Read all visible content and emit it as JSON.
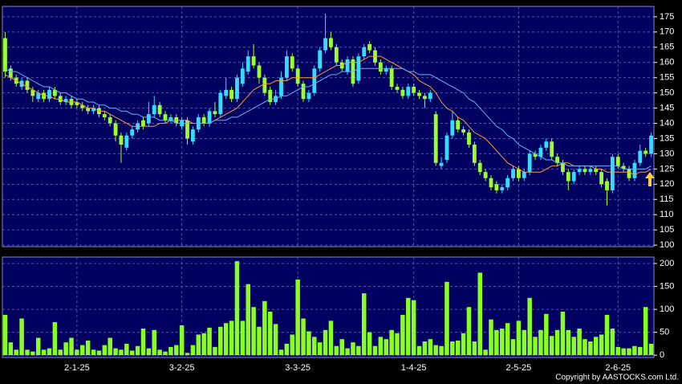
{
  "chart_data": [
    {
      "type": "candlestick",
      "categories": [
        null,
        null,
        null,
        null,
        null,
        null,
        null,
        null,
        null,
        null,
        null,
        null,
        null,
        "2-1-25",
        null,
        null,
        null,
        null,
        null,
        null,
        null,
        null,
        null,
        null,
        null,
        null,
        null,
        null,
        null,
        null,
        null,
        null,
        "3-2-25",
        null,
        null,
        null,
        null,
        null,
        null,
        null,
        null,
        null,
        null,
        null,
        null,
        null,
        null,
        null,
        null,
        null,
        null,
        null,
        null,
        "3-3-25",
        null,
        null,
        null,
        null,
        null,
        null,
        null,
        null,
        null,
        null,
        null,
        null,
        null,
        null,
        null,
        null,
        null,
        null,
        null,
        null,
        "1-4-25",
        null,
        null,
        null,
        null,
        null,
        null,
        null,
        null,
        null,
        null,
        null,
        null,
        null,
        null,
        null,
        null,
        null,
        null,
        "2-5-25",
        null,
        null,
        null,
        null,
        null,
        null,
        null,
        null,
        null,
        null,
        null,
        null,
        null,
        null,
        null,
        null,
        null,
        "2-6-25",
        null,
        null,
        null,
        null,
        null,
        null
      ],
      "open": [
        168,
        158,
        155,
        152,
        154,
        151,
        148,
        150,
        148,
        151,
        149,
        147,
        148,
        147,
        146,
        145,
        144,
        145,
        143,
        142,
        140,
        136,
        132,
        136,
        138,
        141,
        140,
        143,
        146,
        143,
        141,
        142,
        139,
        141,
        134,
        138,
        142,
        140,
        144,
        143,
        149,
        151,
        148,
        153,
        157,
        162,
        159,
        155,
        151,
        147,
        149,
        155,
        162,
        158,
        153,
        148,
        150,
        158,
        164,
        168,
        165,
        160,
        157,
        161,
        154,
        162,
        166,
        164,
        160,
        157,
        158,
        152,
        151,
        149,
        152,
        150,
        149,
        148,
        143,
        126,
        128,
        136,
        141,
        138,
        137,
        133,
        127,
        124,
        122,
        120,
        118,
        119,
        122,
        125,
        122,
        124,
        130,
        129,
        132,
        134,
        129,
        127,
        124,
        121,
        124,
        125,
        124,
        125,
        124,
        121,
        118,
        129,
        126,
        125,
        122,
        127,
        131,
        130
      ],
      "high": [
        170,
        159,
        156,
        155,
        155,
        152,
        151,
        151,
        152,
        152,
        150,
        149,
        149,
        148,
        147,
        146,
        146,
        146,
        144,
        143,
        141,
        137,
        137,
        139,
        141,
        142,
        147,
        149,
        147,
        144,
        143,
        143,
        142,
        142,
        139,
        143,
        143,
        145,
        147,
        151,
        155,
        152,
        156,
        160,
        164,
        166,
        160,
        156,
        152,
        151,
        157,
        164,
        163,
        159,
        154,
        151,
        159,
        165,
        176,
        170,
        166,
        161,
        162,
        162,
        163,
        166,
        167,
        165,
        161,
        159,
        159,
        153,
        152,
        153,
        153,
        151,
        150,
        151,
        144,
        129,
        137,
        144,
        142,
        139,
        138,
        134,
        128,
        125,
        123,
        121,
        120,
        123,
        126,
        126,
        125,
        131,
        131,
        133,
        135,
        135,
        130,
        128,
        125,
        125,
        126,
        126,
        126,
        126,
        125,
        122,
        130,
        130,
        127,
        126,
        128,
        133,
        132,
        137
      ],
      "low": [
        155,
        154,
        152,
        151,
        150,
        147,
        147,
        147,
        147,
        148,
        146,
        146,
        145,
        145,
        144,
        143,
        143,
        142,
        141,
        139,
        134,
        127,
        131,
        135,
        137,
        138,
        139,
        142,
        142,
        140,
        140,
        139,
        138,
        133,
        133,
        137,
        139,
        139,
        142,
        142,
        148,
        147,
        147,
        152,
        156,
        158,
        153,
        149,
        146,
        146,
        148,
        154,
        157,
        152,
        147,
        147,
        149,
        157,
        163,
        164,
        159,
        157,
        156,
        152,
        153,
        161,
        163,
        159,
        156,
        156,
        151,
        150,
        148,
        148,
        149,
        148,
        145,
        147,
        126,
        125,
        127,
        135,
        137,
        136,
        132,
        126,
        123,
        121,
        118,
        117,
        117,
        118,
        121,
        121,
        121,
        123,
        128,
        128,
        131,
        128,
        126,
        123,
        118,
        120,
        123,
        123,
        123,
        123,
        119,
        113,
        117,
        125,
        124,
        121,
        121,
        126,
        129,
        129
      ],
      "close": [
        157,
        155,
        153,
        154,
        151,
        149,
        150,
        148,
        151,
        149,
        147,
        148,
        146,
        146,
        145,
        144,
        145,
        143,
        142,
        140,
        136,
        133,
        136,
        138,
        140,
        139,
        143,
        146,
        143,
        141,
        142,
        140,
        141,
        135,
        138,
        142,
        140,
        144,
        143,
        150,
        151,
        148,
        155,
        158,
        162,
        159,
        155,
        150,
        147,
        149,
        155,
        162,
        158,
        153,
        148,
        150,
        158,
        164,
        168,
        165,
        160,
        158,
        161,
        153,
        162,
        165,
        164,
        160,
        157,
        158,
        152,
        151,
        149,
        152,
        150,
        149,
        148,
        150,
        127,
        127,
        136,
        141,
        138,
        137,
        133,
        127,
        124,
        122,
        119,
        118,
        119,
        122,
        125,
        122,
        124,
        130,
        129,
        132,
        134,
        129,
        127,
        124,
        121,
        124,
        125,
        124,
        125,
        124,
        120,
        118,
        129,
        126,
        125,
        122,
        127,
        131,
        130,
        136
      ],
      "up_color": "#33ddff",
      "down_color": "#99ff33",
      "series": [
        {
          "color": "#ff9933",
          "values": [
            156,
            155,
            154,
            153,
            152,
            151,
            150,
            149,
            149,
            148,
            148,
            147,
            147,
            147,
            146,
            145,
            145,
            144,
            144,
            143,
            142,
            141,
            140,
            139,
            139,
            139,
            139,
            139,
            140,
            140,
            141,
            141,
            141,
            141,
            140,
            140,
            140,
            140,
            141,
            142,
            143,
            144,
            145,
            147,
            149,
            151,
            152,
            153,
            153,
            154,
            154,
            154,
            155,
            155,
            155,
            155,
            155,
            156,
            157,
            158,
            159,
            159,
            160,
            160,
            160,
            161,
            162,
            162,
            162,
            161,
            160,
            159,
            158,
            157,
            156,
            154,
            153,
            152,
            150,
            147,
            145,
            144,
            142,
            141,
            139,
            137,
            136,
            135,
            133,
            131,
            129,
            127,
            126,
            125,
            124,
            124,
            124,
            124,
            125,
            126,
            126,
            127,
            127,
            126,
            126,
            126,
            126,
            125,
            125,
            124,
            124,
            124,
            124,
            124,
            123,
            124,
            124,
            125
          ]
        },
        {
          "color": "#66b3ff",
          "values": [
            158,
            157,
            157,
            156,
            155,
            154,
            153,
            152,
            152,
            151,
            150,
            150,
            149,
            148,
            148,
            147,
            147,
            146,
            146,
            145,
            145,
            144,
            144,
            143,
            143,
            142,
            142,
            142,
            141,
            141,
            141,
            140,
            140,
            140,
            140,
            140,
            140,
            140,
            141,
            141,
            141,
            142,
            142,
            143,
            144,
            145,
            146,
            147,
            148,
            148,
            149,
            149,
            150,
            151,
            152,
            152,
            153,
            154,
            155,
            156,
            156,
            157,
            157,
            157,
            158,
            158,
            158,
            158,
            158,
            158,
            158,
            158,
            158,
            157,
            157,
            156,
            156,
            156,
            155,
            154,
            153,
            152,
            151,
            150,
            148,
            147,
            145,
            143,
            141,
            139,
            138,
            136,
            135,
            133,
            132,
            131,
            130,
            129,
            128,
            128,
            127,
            127,
            126,
            126,
            126,
            126,
            126,
            126,
            126,
            126,
            126,
            126,
            125,
            125,
            125,
            125,
            125,
            126
          ]
        }
      ],
      "ylim": [
        99.5,
        178.4
      ],
      "yticks": [
        100,
        105,
        110,
        115,
        120,
        125,
        130,
        135,
        140,
        145,
        150,
        155,
        160,
        165,
        170,
        175
      ],
      "grid": true
    },
    {
      "type": "bar",
      "values": [
        88,
        28,
        12,
        80,
        12,
        8,
        38,
        12,
        15,
        72,
        12,
        28,
        38,
        12,
        22,
        32,
        12,
        10,
        22,
        38,
        15,
        12,
        25,
        10,
        20,
        58,
        15,
        55,
        12,
        8,
        18,
        22,
        65,
        5,
        22,
        45,
        48,
        60,
        18,
        62,
        70,
        75,
        205,
        75,
        155,
        105,
        62,
        118,
        95,
        68,
        12,
        25,
        45,
        165,
        80,
        52,
        40,
        28,
        55,
        75,
        20,
        35,
        15,
        28,
        20,
        135,
        50,
        20,
        40,
        35,
        55,
        48,
        88,
        125,
        120,
        20,
        30,
        35,
        22,
        20,
        160,
        30,
        32,
        48,
        105,
        30,
        180,
        12,
        78,
        55,
        58,
        70,
        35,
        75,
        55,
        125,
        40,
        55,
        90,
        42,
        55,
        95,
        55,
        40,
        58,
        35,
        30,
        40,
        45,
        88,
        58,
        18,
        15,
        15,
        20,
        18,
        105,
        25
      ],
      "color": "#88ff22",
      "ylim": [
        -5,
        214
      ],
      "yticks": [
        0,
        50,
        100,
        150,
        200
      ],
      "grid": true
    }
  ],
  "copyright": "Copyright by AASTOCKS.com Ltd."
}
